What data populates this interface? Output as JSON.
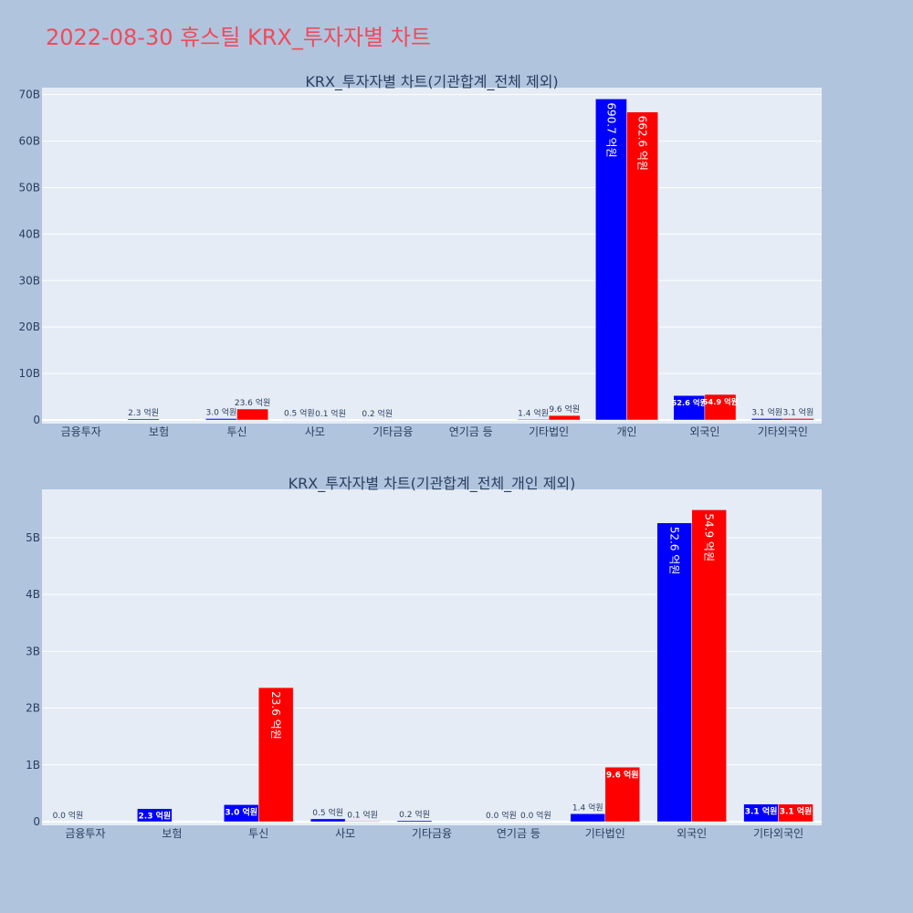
{
  "page_title": "2022-08-30 휴스틸 KRX_투자자별 차트",
  "colors": {
    "background": "#b0c4de",
    "plot_bg": "#e5ecf6",
    "title": "#ef4b5b",
    "series_a": "#0000ff",
    "series_b": "#ff0000",
    "text": "#2a3f5f"
  },
  "chart_data": [
    {
      "type": "bar",
      "title": "KRX_투자자별 차트(기관합계_전체 제외)",
      "categories": [
        "금융투자",
        "보험",
        "투신",
        "사모",
        "기타금융",
        "연기금 등",
        "기타법인",
        "개인",
        "외국인",
        "기타외국인"
      ],
      "ylim": [
        0,
        71.5
      ],
      "yticks": [
        0,
        10,
        20,
        30,
        40,
        50,
        60,
        70
      ],
      "ytick_labels": [
        "0",
        "10B",
        "20B",
        "30B",
        "40B",
        "50B",
        "60B",
        "70B"
      ],
      "grid": true,
      "series": [
        {
          "color": "#0000ff",
          "values": [
            null,
            0.23,
            0.3,
            0.05,
            0.02,
            null,
            0.14,
            69.07,
            5.26,
            0.31
          ],
          "labels": [
            "",
            "2.3 억원",
            "3.0 억원",
            "0.5 억원",
            "0.2 억원",
            "",
            "1.4 억원",
            "690.7 억원",
            "52.6 억원",
            "3.1 억원"
          ]
        },
        {
          "color": "#ff0000",
          "values": [
            null,
            null,
            2.36,
            0.01,
            null,
            null,
            0.96,
            66.26,
            5.49,
            0.31
          ],
          "labels": [
            "",
            "",
            "23.6 억원",
            "0.1 억원",
            "",
            "",
            "9.6 억원",
            "662.6 억원",
            "54.9 억원",
            "3.1 억원"
          ]
        }
      ]
    },
    {
      "type": "bar",
      "title": "KRX_투자자별 차트(기관합계_전체_개인 제외)",
      "categories": [
        "금융투자",
        "보험",
        "투신",
        "사모",
        "기타금융",
        "연기금 등",
        "기타법인",
        "외국인",
        "기타외국인"
      ],
      "ylim": [
        0,
        5.85
      ],
      "yticks": [
        0,
        1,
        2,
        3,
        4,
        5
      ],
      "ytick_labels": [
        "0",
        "1B",
        "2B",
        "3B",
        "4B",
        "5B"
      ],
      "grid": true,
      "series": [
        {
          "color": "#0000ff",
          "values": [
            0.0,
            0.23,
            0.3,
            0.05,
            0.02,
            0.0,
            0.14,
            5.26,
            0.31
          ],
          "labels": [
            "0.0 억원",
            "2.3 억원",
            "3.0 억원",
            "0.5 억원",
            "0.2 억원",
            "0.0 억원",
            "1.4 억원",
            "52.6 억원",
            "3.1 억원"
          ]
        },
        {
          "color": "#ff0000",
          "values": [
            null,
            null,
            2.36,
            0.01,
            null,
            0.0,
            0.96,
            5.49,
            0.31
          ],
          "labels": [
            "",
            "",
            "23.6 억원",
            "0.1 억원",
            "",
            "0.0 억원",
            "9.6 억원",
            "54.9 억원",
            "3.1 억원"
          ]
        }
      ]
    }
  ]
}
